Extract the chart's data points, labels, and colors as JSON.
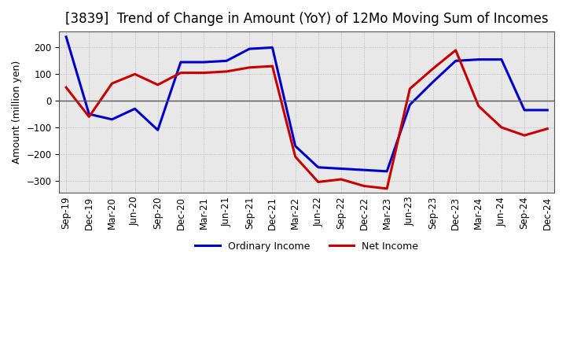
{
  "title": "[3839]  Trend of Change in Amount (YoY) of 12Mo Moving Sum of Incomes",
  "ylabel": "Amount (million yen)",
  "x_labels": [
    "Sep-19",
    "Dec-19",
    "Mar-20",
    "Jun-20",
    "Sep-20",
    "Dec-20",
    "Mar-21",
    "Jun-21",
    "Sep-21",
    "Dec-21",
    "Mar-22",
    "Jun-22",
    "Sep-22",
    "Dec-22",
    "Mar-23",
    "Jun-23",
    "Sep-23",
    "Dec-23",
    "Mar-24",
    "Jun-24",
    "Sep-24",
    "Dec-24"
  ],
  "ordinary_income": [
    240,
    -50,
    -70,
    -30,
    -110,
    145,
    145,
    150,
    195,
    200,
    -170,
    -250,
    -255,
    -260,
    -265,
    -15,
    70,
    150,
    155,
    155,
    -35,
    -35
  ],
  "net_income": [
    50,
    -60,
    65,
    100,
    60,
    105,
    105,
    110,
    125,
    130,
    -210,
    -305,
    -295,
    -320,
    -330,
    45,
    120,
    190,
    -20,
    -100,
    -130,
    -105
  ],
  "ordinary_color": "#0000cc",
  "net_color": "#cc0000",
  "ylim": [
    -345,
    260
  ],
  "yticks": [
    -300,
    -200,
    -100,
    0,
    100,
    200
  ],
  "background_color": "#ffffff",
  "plot_bg_color": "#e8e8e8",
  "grid_color": "#aaaaaa",
  "title_fontsize": 12,
  "label_fontsize": 9,
  "tick_fontsize": 8.5
}
